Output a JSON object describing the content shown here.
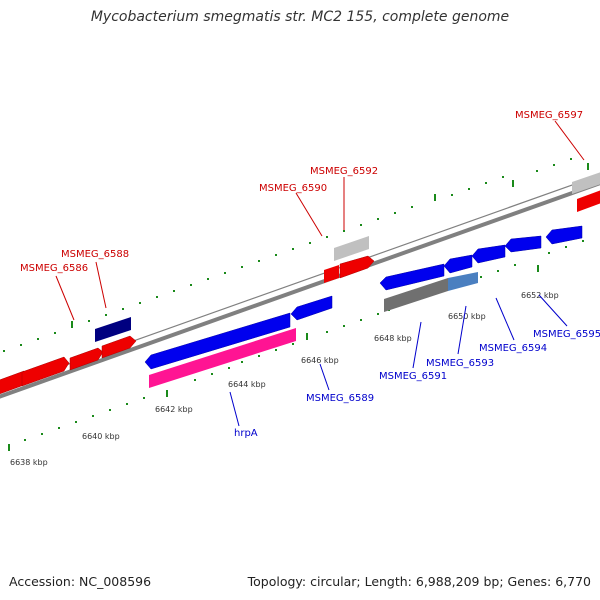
{
  "title": "Mycobacterium smegmatis str. MC2 155, complete genome",
  "footer": {
    "accession": "Accession: NC_008596",
    "summary": "Topology: circular; Length: 6,988,209 bp; Genes: 6,770"
  },
  "colors": {
    "forward_gene": "#ff0000",
    "reverse_gene": "#0000ff",
    "selected_gene": "#ff1493",
    "pseudo_gene": "#c0c0c0",
    "dark_gene": "#000080",
    "backbone": "#808080",
    "ticks": "#006400",
    "forward_label": "#cc0000",
    "reverse_label": "#0000cc"
  },
  "scale_ticks": [
    {
      "label": "6638 kbp"
    },
    {
      "label": "6640 kbp"
    },
    {
      "label": "6642 kbp"
    },
    {
      "label": "6644 kbp"
    },
    {
      "label": "6646 kbp"
    },
    {
      "label": "6648 kbp"
    },
    {
      "label": "6650 kbp"
    },
    {
      "label": "6652 kbp"
    }
  ],
  "gene_labels": {
    "forward": [
      "MSMEG_6586",
      "MSMEG_6588",
      "MSMEG_6590",
      "MSMEG_6592",
      "MSMEG_6597"
    ],
    "reverse": [
      "hrpA",
      "MSMEG_6589",
      "MSMEG_6591",
      "MSMEG_6593",
      "MSMEG_6594",
      "MSMEG_6595"
    ]
  }
}
